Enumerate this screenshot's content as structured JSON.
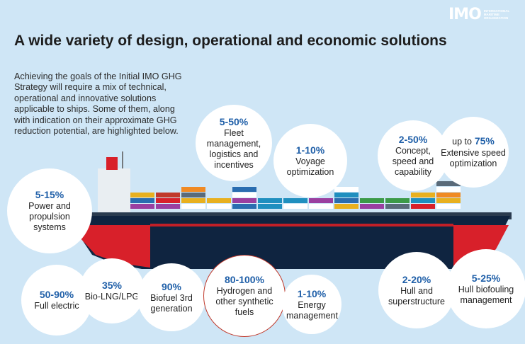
{
  "logo": {
    "mark": "IMO",
    "lines": [
      "INTERNATIONAL",
      "MARITIME",
      "ORGANIZATION"
    ]
  },
  "title": "A wide variety of design, operational and economic solutions",
  "intro": "Achieving the goals of the Initial IMO GHG Strategy will require a mix of technical, operational and innovative solutions applicable to ships. Some of them, along with indication on their approximate GHG reduction potential, are highlighted below.",
  "solutions": {
    "power": {
      "pct": "5-15%",
      "label": "Power and propulsion systems"
    },
    "fleet": {
      "pct": "5-50%",
      "label": "Fleet management, logistics and incentives"
    },
    "voyage": {
      "pct": "1-10%",
      "label": "Voyage optimization"
    },
    "concept": {
      "pct": "2-50%",
      "label": "Concept, speed and capability"
    },
    "speed": {
      "prefix": "up to",
      "pct": "75%",
      "label": "Extensive speed optimization"
    },
    "electric": {
      "pct": "50-90%",
      "label": "Full electric"
    },
    "lng": {
      "pct": "35%",
      "label": "Bio-LNG/LPG"
    },
    "biofuel": {
      "pct": "90%",
      "label": "Biofuel 3rd generation"
    },
    "hydrogen": {
      "pct": "80-100%",
      "label": "Hydrogen and other synthetic fuels"
    },
    "energy": {
      "pct": "1-10%",
      "label": "Energy management"
    },
    "hull": {
      "pct": "2-20%",
      "label": "Hull and superstructure"
    },
    "biofouling": {
      "pct": "5-25%",
      "label": "Hull biofouling management"
    }
  },
  "colors": {
    "background": "#cfe6f6",
    "accent": "#1f5fa8",
    "hull_red": "#d8202a",
    "hull_navy": "#0f2440"
  }
}
